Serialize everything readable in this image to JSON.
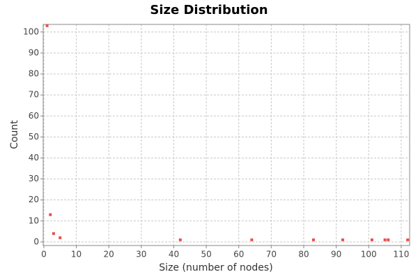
{
  "chart_data": {
    "type": "scatter",
    "title": "Size Distribution",
    "x_label": "Size (number of nodes)",
    "y_label": "Count",
    "x": [
      1,
      2,
      3,
      5,
      42,
      64,
      83,
      92,
      101,
      105,
      106,
      112
    ],
    "values": [
      103,
      13,
      4,
      2,
      1,
      1,
      1,
      1,
      1,
      1,
      1,
      1
    ],
    "color": "#e8504a",
    "xlim": [
      -0.2,
      112.6
    ],
    "ylim": [
      -1.7,
      103.6
    ],
    "xticks": [
      0,
      10,
      20,
      30,
      40,
      50,
      60,
      70,
      80,
      90,
      100,
      110
    ],
    "yticks": [
      0,
      10,
      20,
      30,
      40,
      50,
      60,
      70,
      80,
      90,
      100
    ],
    "grid": true
  }
}
